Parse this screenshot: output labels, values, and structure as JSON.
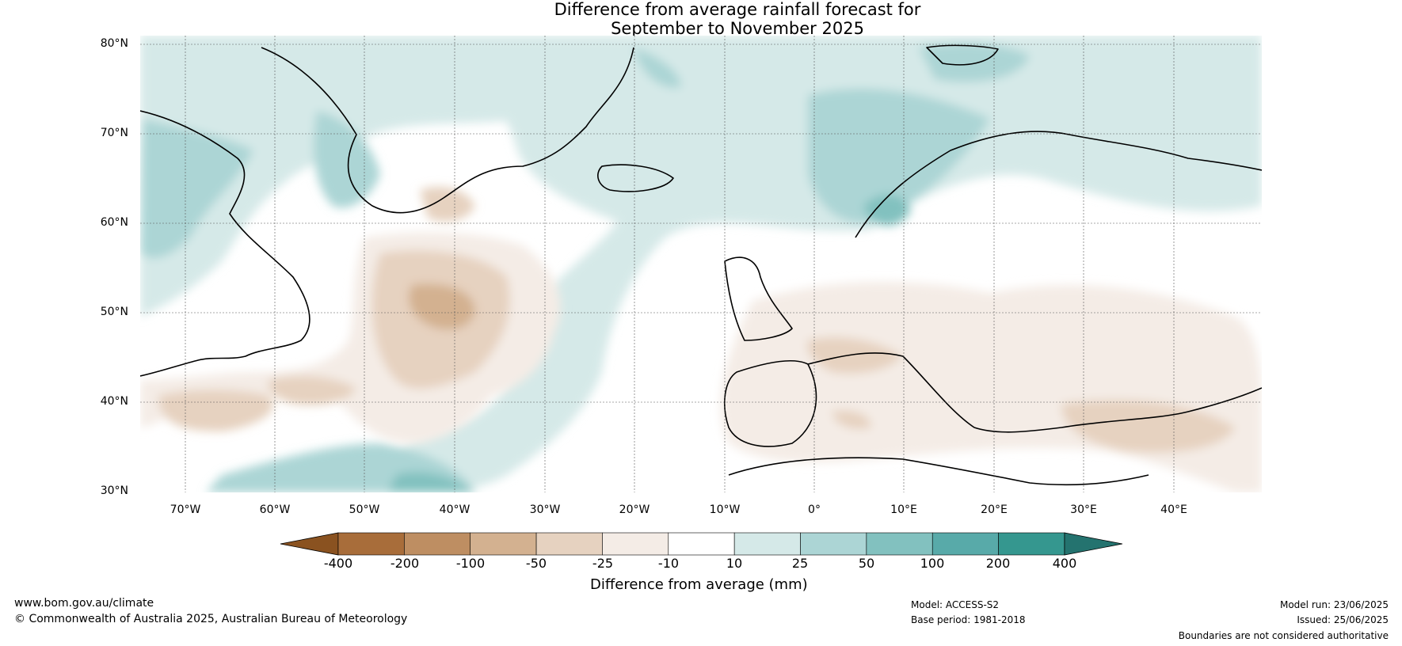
{
  "title": {
    "line1": "Difference from average rainfall forecast for",
    "line2": "September to November 2025"
  },
  "map": {
    "region": "North Atlantic and Europe",
    "lon_range": [
      -75,
      50
    ],
    "lat_range": [
      30,
      81
    ],
    "lat_labels": [
      "80°N",
      "70°N",
      "60°N",
      "50°N",
      "40°N",
      "30°N"
    ],
    "lon_labels": [
      "70°W",
      "60°W",
      "50°W",
      "40°W",
      "30°W",
      "20°W",
      "10°W",
      "0°",
      "10°E",
      "20°E",
      "30°E",
      "40°E"
    ],
    "gridlines": true
  },
  "colorbar": {
    "ticks": [
      "-400",
      "-200",
      "-100",
      "-50",
      "-25",
      "-10",
      "10",
      "25",
      "50",
      "100",
      "200",
      "400"
    ],
    "colors": [
      "#8a5220",
      "#a86d3a",
      "#be8e62",
      "#d3b190",
      "#e6d2c0",
      "#f4ece6",
      "#ffffff",
      "#d5e9e8",
      "#acd5d5",
      "#82c1bf",
      "#58aaa9",
      "#35978f",
      "#24736f"
    ],
    "label": "Difference from average (mm)"
  },
  "footer": {
    "website": "www.bom.gov.au/climate",
    "copyright": "© Commonwealth of Australia 2025, Australian Bureau of Meteorology",
    "model": "Model: ACCESS-S2",
    "base_period": "Base period: 1981-2018",
    "model_run": "Model run: 23/06/2025",
    "issued": "Issued: 25/06/2025",
    "disclaimer": "Boundaries are not considered authoritative"
  }
}
